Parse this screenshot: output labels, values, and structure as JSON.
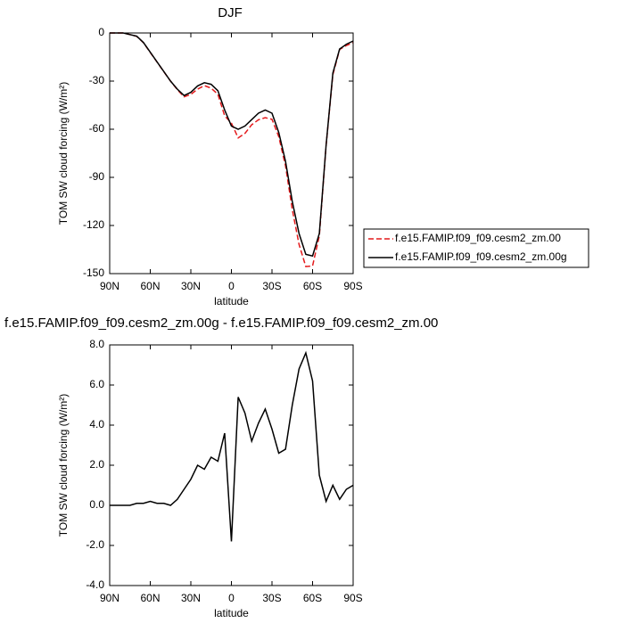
{
  "chart_data": [
    {
      "type": "line",
      "title": "DJF",
      "xlabel": "latitude",
      "ylabel": "TOM SW cloud forcing (W/m²)",
      "x": [
        90,
        85,
        80,
        75,
        70,
        65,
        60,
        55,
        50,
        45,
        40,
        35,
        30,
        25,
        20,
        15,
        10,
        5,
        0,
        -5,
        -10,
        -15,
        -20,
        -25,
        -30,
        -35,
        -40,
        -45,
        -50,
        -55,
        -60,
        -65,
        -70,
        -75,
        -80,
        -85,
        -90
      ],
      "series": [
        {
          "name": "f.e15.FAMIP.f09_f09.cesm2_zm.00",
          "color": "#e41a1c",
          "dashed": true,
          "values": [
            0,
            0,
            0,
            -1,
            -2.1,
            -6.1,
            -12.2,
            -18.1,
            -24.1,
            -30,
            -35.3,
            -39.8,
            -38.3,
            -35,
            -32.8,
            -34.4,
            -38.2,
            -51.6,
            -56.2,
            -65.4,
            -62.6,
            -57.2,
            -54.1,
            -52.8,
            -53.8,
            -64.6,
            -82.8,
            -110,
            -131.8,
            -145.6,
            -145.2,
            -126.5,
            -70.2,
            -26,
            -10.3,
            -7.8,
            -6
          ]
        },
        {
          "name": "f.e15.FAMIP.f09_f09.cesm2_zm.00g",
          "color": "#000000",
          "dashed": false,
          "values": [
            0,
            0,
            0,
            -1,
            -2,
            -6,
            -12,
            -18,
            -24,
            -30,
            -35,
            -39,
            -37,
            -33,
            -31,
            -32,
            -36,
            -48,
            -58,
            -60,
            -58,
            -54,
            -50,
            -48,
            -50,
            -62,
            -80,
            -105,
            -125,
            -138,
            -139,
            -125,
            -70,
            -25,
            -10,
            -7,
            -5
          ]
        }
      ],
      "xlim": [
        90,
        -90
      ],
      "xticks": [
        {
          "value": 90,
          "label": "90N"
        },
        {
          "value": 60,
          "label": "60N"
        },
        {
          "value": 30,
          "label": "30N"
        },
        0,
        {
          "value": -30,
          "label": "30S"
        },
        {
          "value": -60,
          "label": "60S"
        },
        {
          "value": -90,
          "label": "90S"
        }
      ],
      "ylim": [
        -150,
        0
      ],
      "yticks": [
        -150,
        -120,
        -90,
        -60,
        -30,
        0
      ],
      "legend": "outside-right"
    },
    {
      "type": "line",
      "title": "f.e15.FAMIP.f09_f09.cesm2_zm.00g - f.e15.FAMIP.f09_f09.cesm2_zm.00",
      "xlabel": "latitude",
      "ylabel": "TOM SW cloud forcing (W/m²)",
      "x": [
        90,
        85,
        80,
        75,
        70,
        65,
        60,
        55,
        50,
        45,
        40,
        35,
        30,
        25,
        20,
        15,
        10,
        5,
        0,
        -5,
        -10,
        -15,
        -20,
        -25,
        -30,
        -35,
        -40,
        -45,
        -50,
        -55,
        -60,
        -65,
        -70,
        -75,
        -80,
        -85,
        -90
      ],
      "series": [
        {
          "color": "#000000",
          "dashed": false,
          "values": [
            0,
            0,
            0,
            0,
            0.1,
            0.1,
            0.2,
            0.1,
            0.1,
            0,
            0.3,
            0.8,
            1.3,
            2,
            1.8,
            2.4,
            2.2,
            3.6,
            -1.8,
            5.4,
            4.6,
            3.2,
            4.1,
            4.8,
            3.8,
            2.6,
            2.8,
            5,
            6.8,
            7.6,
            6.2,
            1.5,
            0.2,
            1,
            0.3,
            0.8,
            1
          ]
        }
      ],
      "xlim": [
        90,
        -90
      ],
      "xticks": [
        {
          "value": 90,
          "label": "90N"
        },
        {
          "value": 60,
          "label": "60N"
        },
        {
          "value": 30,
          "label": "30N"
        },
        0,
        {
          "value": -30,
          "label": "30S"
        },
        {
          "value": -60,
          "label": "60S"
        },
        {
          "value": -90,
          "label": "90S"
        }
      ],
      "ylim": [
        -4,
        8
      ],
      "yticks": [
        {
          "value": -4,
          "label": "-4.0"
        },
        {
          "value": -2,
          "label": "-2.0"
        },
        {
          "value": 0,
          "label": "0.0"
        },
        {
          "value": 2,
          "label": "2.0"
        },
        {
          "value": 4,
          "label": "4.0"
        },
        {
          "value": 6,
          "label": "6.0"
        },
        {
          "value": 8,
          "label": "8.0"
        }
      ]
    }
  ]
}
